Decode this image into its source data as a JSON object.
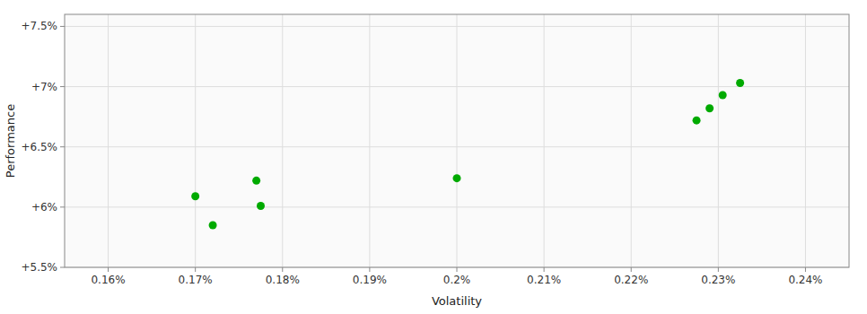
{
  "chart_data": {
    "type": "scatter",
    "xlabel": "Volatility",
    "ylabel": "Performance",
    "x": [
      0.17,
      0.172,
      0.177,
      0.1775,
      0.2,
      0.2275,
      0.229,
      0.2305,
      0.2325
    ],
    "values": [
      0.0609,
      0.0585,
      0.0622,
      0.0601,
      0.0624,
      0.0672,
      0.0682,
      0.0693,
      0.0703
    ],
    "color": "#00aa00",
    "xlim": [
      0.155,
      0.245
    ],
    "ylim": [
      0.055,
      0.076
    ],
    "xticks": [
      {
        "value": 0.16,
        "label": "0.16%"
      },
      {
        "value": 0.17,
        "label": "0.17%"
      },
      {
        "value": 0.18,
        "label": "0.18%"
      },
      {
        "value": 0.19,
        "label": "0.19%"
      },
      {
        "value": 0.2,
        "label": "0.2%"
      },
      {
        "value": 0.21,
        "label": "0.21%"
      },
      {
        "value": 0.22,
        "label": "0.22%"
      },
      {
        "value": 0.23,
        "label": "0.23%"
      },
      {
        "value": 0.24,
        "label": "0.24%"
      }
    ],
    "yticks": [
      {
        "value": 0.055,
        "label": "+5.5%"
      },
      {
        "value": 0.06,
        "label": "+6%"
      },
      {
        "value": 0.065,
        "label": "+6.5%"
      },
      {
        "value": 0.07,
        "label": "+7%"
      },
      {
        "value": 0.075,
        "label": "+7.5%"
      }
    ],
    "grid": true
  }
}
